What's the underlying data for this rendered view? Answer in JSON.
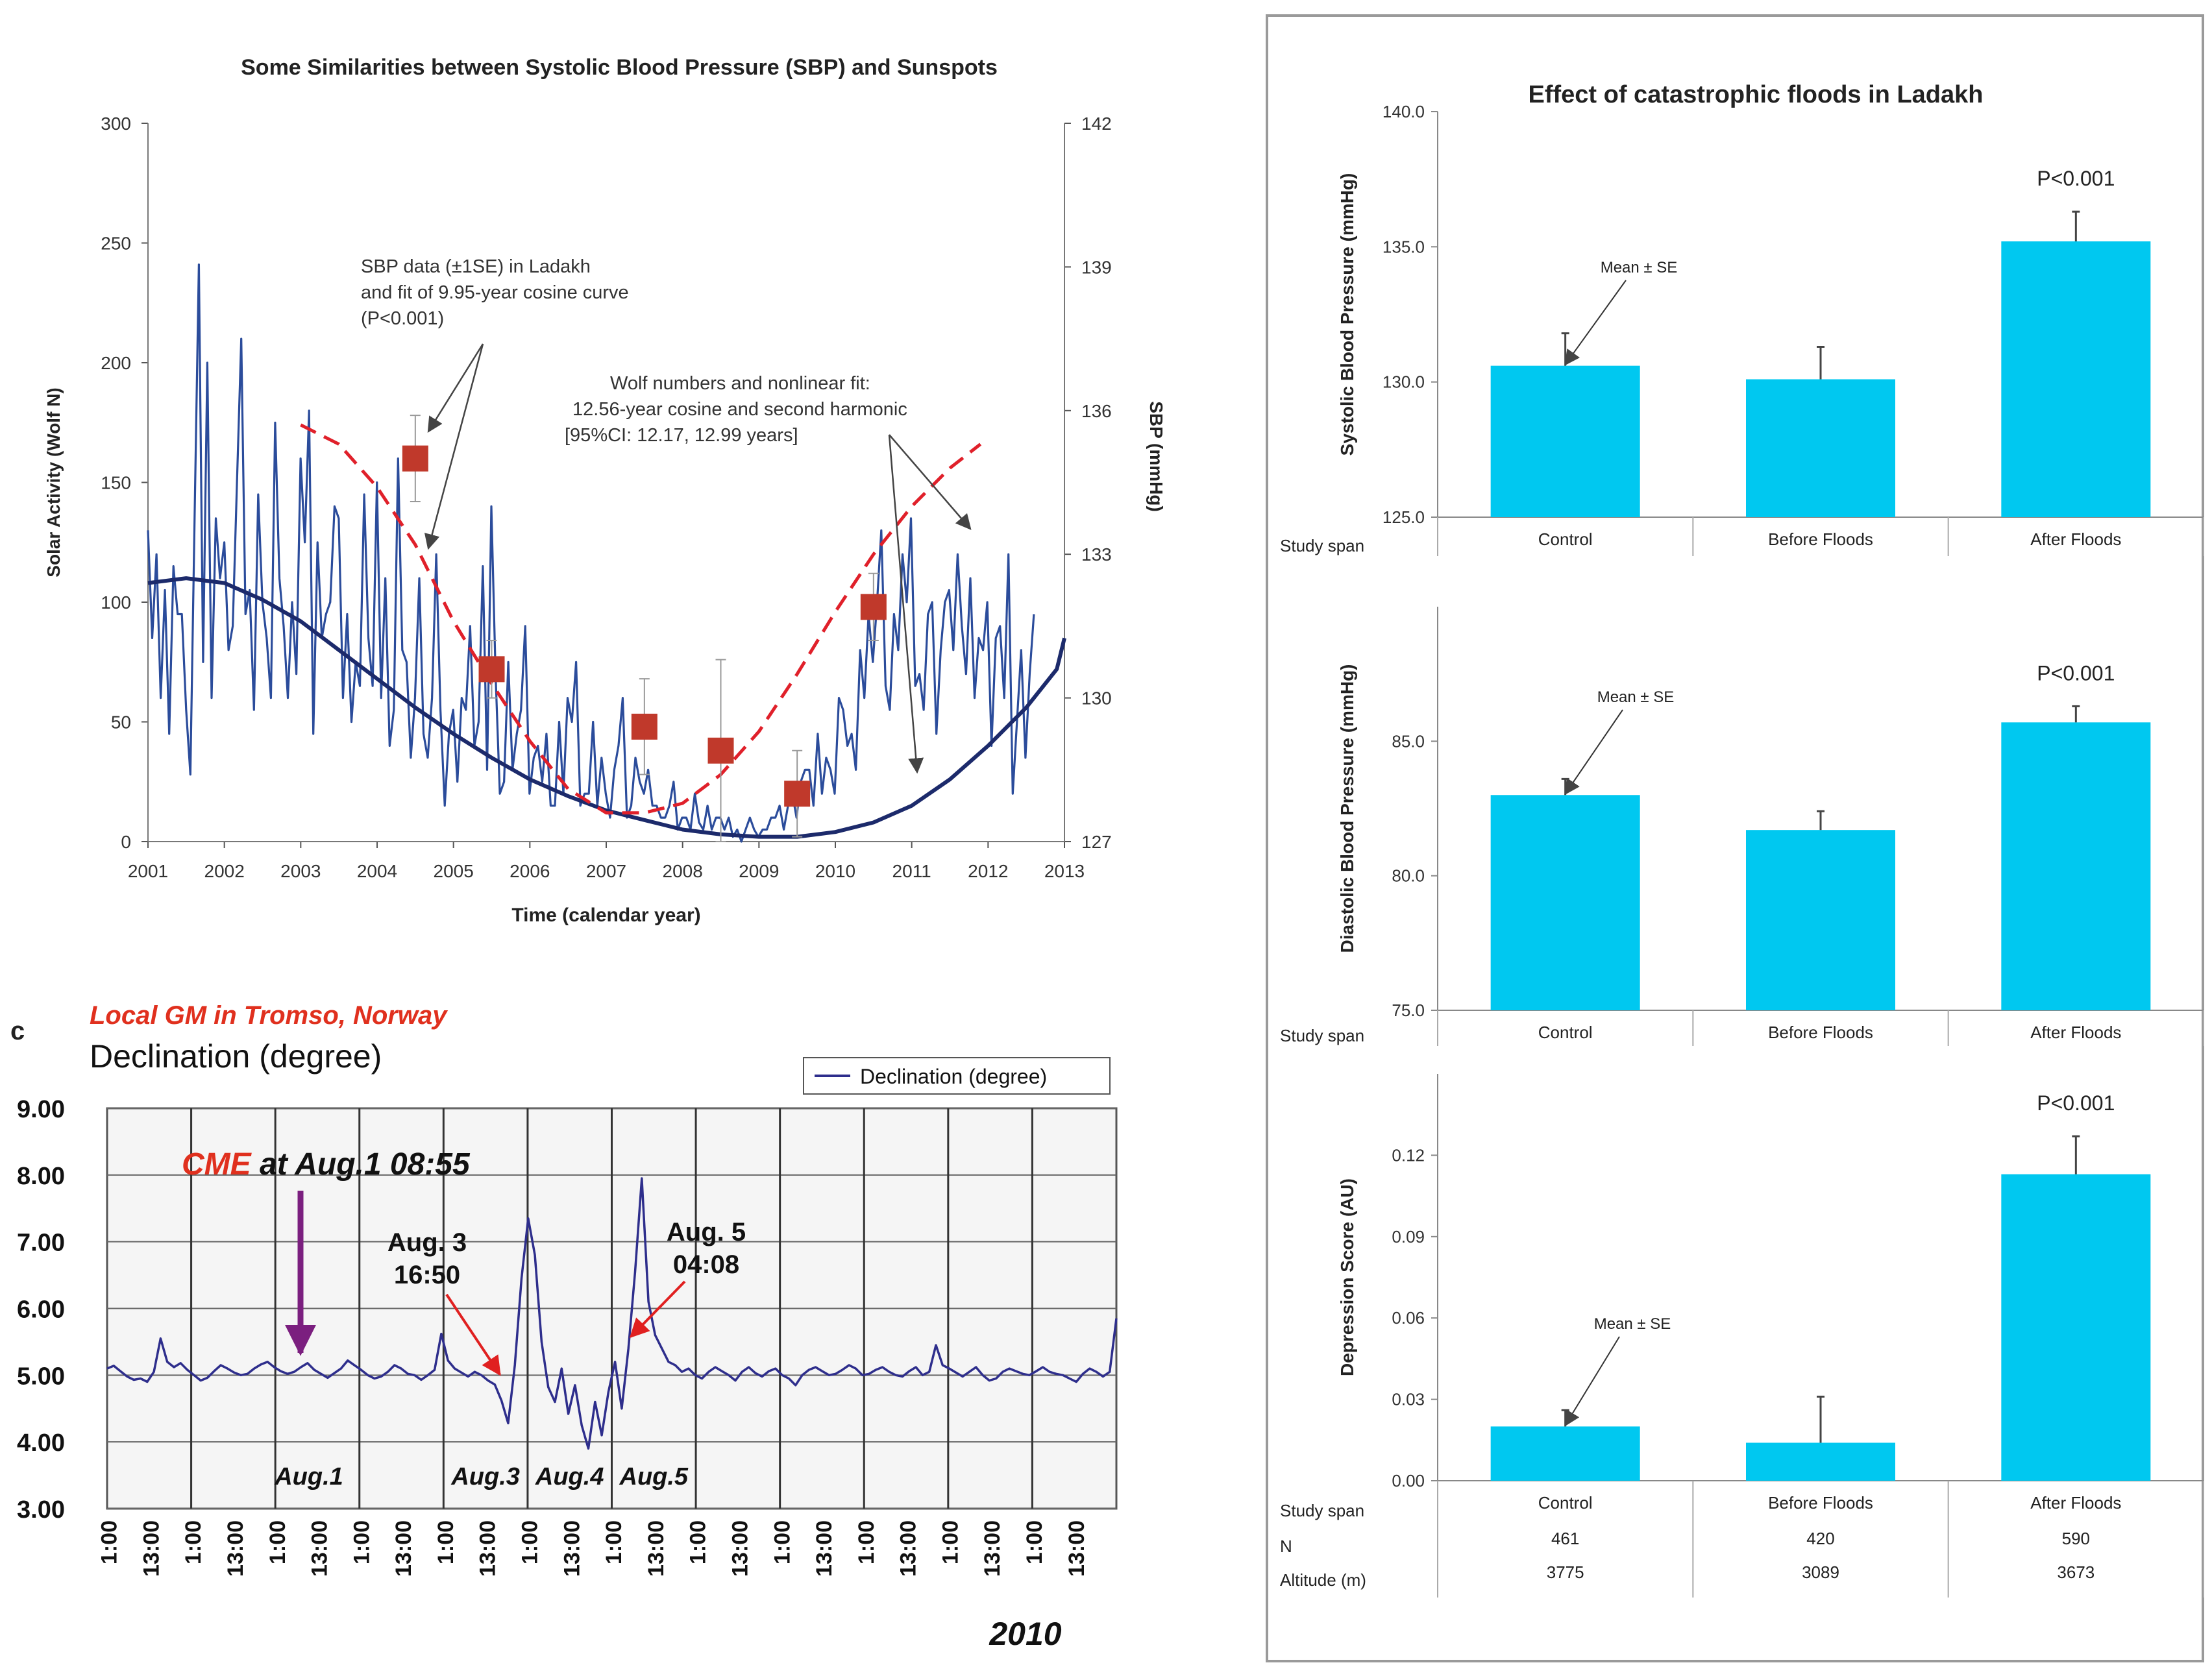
{
  "chart_data": [
    {
      "id": "sunspots_sbp",
      "type": "line",
      "title": "Some Similarities between Systolic Blood Pressure (SBP) and Sunspots",
      "xlabel": "Time (calendar year)",
      "ylabel": "Solar Activity (Wolf N)",
      "y2label": "SBP (mmHg)",
      "x_ticks": [
        "2001",
        "2002",
        "2003",
        "2004",
        "2005",
        "2006",
        "2007",
        "2008",
        "2009",
        "2010",
        "2011",
        "2012",
        "2013"
      ],
      "xlim": [
        2001,
        2013
      ],
      "y_ticks": [
        "0",
        "50",
        "100",
        "150",
        "200",
        "250",
        "300"
      ],
      "ylim": [
        0,
        300
      ],
      "y2_ticks": [
        "127",
        "130",
        "133",
        "136",
        "139",
        "142"
      ],
      "y2lim": [
        127,
        142
      ],
      "annotations": [
        {
          "lines": [
            "SBP data (±1SE) in Ladakh",
            "and fit of 9.95-year cosine curve",
            "(P<0.001)"
          ]
        },
        {
          "lines": [
            "Wolf numbers and nonlinear fit:",
            "12.56-year cosine and second harmonic",
            "[95%CI: 12.17, 12.99 years]"
          ]
        }
      ],
      "wolf_monthly": [
        130,
        85,
        120,
        60,
        105,
        45,
        115,
        95,
        95,
        55,
        28,
        135,
        241,
        75,
        200,
        60,
        135,
        110,
        125,
        80,
        90,
        150,
        210,
        95,
        105,
        55,
        145,
        100,
        85,
        60,
        175,
        110,
        90,
        60,
        100,
        70,
        160,
        125,
        180,
        45,
        125,
        85,
        95,
        100,
        140,
        135,
        60,
        95,
        50,
        75,
        65,
        145,
        85,
        65,
        150,
        60,
        110,
        40,
        55,
        160,
        80,
        75,
        35,
        60,
        110,
        45,
        35,
        60,
        120,
        55,
        15,
        45,
        55,
        25,
        60,
        55,
        90,
        40,
        50,
        115,
        30,
        140,
        70,
        20,
        25,
        75,
        30,
        45,
        55,
        90,
        20,
        35,
        40,
        25,
        45,
        15,
        15,
        50,
        20,
        60,
        50,
        75,
        15,
        20,
        20,
        50,
        15,
        35,
        20,
        10,
        30,
        40,
        60,
        10,
        15,
        35,
        25,
        20,
        30,
        15,
        15,
        10,
        10,
        15,
        25,
        5,
        10,
        10,
        5,
        20,
        8,
        5,
        15,
        5,
        10,
        10,
        5,
        10,
        2,
        5,
        0,
        5,
        10,
        5,
        2,
        5,
        5,
        10,
        10,
        15,
        5,
        15,
        20,
        10,
        25,
        30,
        30,
        15,
        45,
        20,
        35,
        30,
        20,
        60,
        55,
        40,
        45,
        30,
        80,
        60,
        95,
        75,
        100,
        130,
        65,
        55,
        95,
        80,
        120,
        100,
        135,
        65,
        70,
        55,
        95,
        100,
        45,
        80,
        100,
        105,
        80,
        120,
        90,
        70,
        110,
        60,
        85,
        80,
        100,
        40,
        85,
        90,
        60,
        120,
        20,
        50,
        80,
        35,
        70,
        95
      ],
      "wolf_fit": [
        [
          2001.0,
          108
        ],
        [
          2001.5,
          110
        ],
        [
          2002.0,
          108
        ],
        [
          2002.5,
          101
        ],
        [
          2003.0,
          92
        ],
        [
          2003.5,
          80
        ],
        [
          2004.0,
          68
        ],
        [
          2004.5,
          56
        ],
        [
          2005.0,
          45
        ],
        [
          2005.5,
          35
        ],
        [
          2006.0,
          26
        ],
        [
          2006.5,
          19
        ],
        [
          2007.0,
          13
        ],
        [
          2007.5,
          9
        ],
        [
          2008.0,
          5
        ],
        [
          2008.5,
          3
        ],
        [
          2009.0,
          2
        ],
        [
          2009.5,
          2
        ],
        [
          2010.0,
          4
        ],
        [
          2010.5,
          8
        ],
        [
          2011.0,
          15
        ],
        [
          2011.5,
          26
        ],
        [
          2012.0,
          40
        ],
        [
          2012.5,
          56
        ],
        [
          2012.9,
          72
        ],
        [
          2013.0,
          85
        ]
      ],
      "sbp_fit": [
        [
          2003.0,
          135.7
        ],
        [
          2003.5,
          135.3
        ],
        [
          2004.0,
          134.4
        ],
        [
          2004.5,
          133.2
        ],
        [
          2005.0,
          131.6
        ],
        [
          2005.5,
          130.3
        ],
        [
          2006.0,
          129.1
        ],
        [
          2006.5,
          128.1
        ],
        [
          2007.0,
          127.6
        ],
        [
          2007.5,
          127.6
        ],
        [
          2008.0,
          127.8
        ],
        [
          2008.5,
          128.4
        ],
        [
          2009.0,
          129.3
        ],
        [
          2009.5,
          130.5
        ],
        [
          2010.0,
          131.8
        ],
        [
          2010.5,
          133.0
        ],
        [
          2011.0,
          134.0
        ],
        [
          2011.5,
          134.8
        ],
        [
          2011.9,
          135.3
        ]
      ],
      "sbp_points": [
        {
          "x": 2004.5,
          "y": 135.0,
          "se": 0.9
        },
        {
          "x": 2005.5,
          "y": 130.6,
          "se": 0.6
        },
        {
          "x": 2007.5,
          "y": 129.4,
          "se": 1.0
        },
        {
          "x": 2008.5,
          "y": 128.9,
          "se": 1.9
        },
        {
          "x": 2009.5,
          "y": 128.0,
          "se": 0.9
        },
        {
          "x": 2010.5,
          "y": 131.9,
          "se": 0.7
        }
      ],
      "colors": {
        "wolf": "#2b4c9b",
        "wolf_fit": "#1c2a6b",
        "sbp_fit": "#e0202a",
        "sbp_points": "#c0392b"
      }
    },
    {
      "id": "tromso_declination",
      "type": "line",
      "panel_label": "c",
      "title": "Local GM in Tromso, Norway",
      "subtitle": "Declination (degree)",
      "legend": "Declination (degree)",
      "y_ticks": [
        "3.00",
        "4.00",
        "5.00",
        "6.00",
        "7.00",
        "8.00",
        "9.00"
      ],
      "ylim": [
        3,
        9
      ],
      "x_ticks": [
        "1:00",
        "13:00",
        "1:00",
        "13:00",
        "1:00",
        "13:00",
        "1:00",
        "13:00",
        "1:00",
        "13:00",
        "1:00",
        "13:00",
        "1:00",
        "13:00",
        "1:00",
        "13:00",
        "1:00",
        "13:00",
        "1:00",
        "13:00",
        "1:00",
        "13:00",
        "1:00",
        "13:00"
      ],
      "year": "2010",
      "day_labels": [
        {
          "text": "Aug.1",
          "x": 2.4
        },
        {
          "text": "Aug.3",
          "x": 4.5
        },
        {
          "text": "Aug.4",
          "x": 5.5
        },
        {
          "text": "Aug.5",
          "x": 6.5
        }
      ],
      "event_cme": {
        "prefix": "CME",
        "text": "at Aug.1 08:55",
        "x": 2.3
      },
      "event_aug3": {
        "lines": [
          "Aug. 3",
          "16:50"
        ],
        "x": 4.7
      },
      "event_aug5": {
        "lines": [
          "Aug. 5",
          "04:08"
        ],
        "x": 6.2
      },
      "declination": [
        5.1,
        5.14,
        5.06,
        4.98,
        4.93,
        4.95,
        4.9,
        5.05,
        5.55,
        5.2,
        5.12,
        5.18,
        5.08,
        5.0,
        4.92,
        4.96,
        5.06,
        5.15,
        5.1,
        5.04,
        5.0,
        5.02,
        5.1,
        5.16,
        5.2,
        5.12,
        5.06,
        5.02,
        5.05,
        5.12,
        5.18,
        5.08,
        5.02,
        4.96,
        5.03,
        5.1,
        5.22,
        5.15,
        5.08,
        5.0,
        4.95,
        4.98,
        5.05,
        5.15,
        5.1,
        5.02,
        5.0,
        4.93,
        5.0,
        5.08,
        5.62,
        5.22,
        5.1,
        5.04,
        4.98,
        5.05,
        5.0,
        4.92,
        4.86,
        4.62,
        4.28,
        5.15,
        6.45,
        7.35,
        6.8,
        5.5,
        4.82,
        4.6,
        5.1,
        4.42,
        4.85,
        4.25,
        3.9,
        4.6,
        4.1,
        4.75,
        5.2,
        4.5,
        5.4,
        6.55,
        7.95,
        6.1,
        5.6,
        5.4,
        5.2,
        5.15,
        5.05,
        5.1,
        5.0,
        4.95,
        5.05,
        5.12,
        5.06,
        5.0,
        4.92,
        5.05,
        5.12,
        5.03,
        4.98,
        5.06,
        5.1,
        5.0,
        4.95,
        4.85,
        5.0,
        5.08,
        5.12,
        5.06,
        5.0,
        5.02,
        5.08,
        5.15,
        5.1,
        5.0,
        5.02,
        5.08,
        5.12,
        5.05,
        5.0,
        4.98,
        5.06,
        5.12,
        5.0,
        5.05,
        5.45,
        5.15,
        5.1,
        5.04,
        4.98,
        5.05,
        5.12,
        5.0,
        4.92,
        4.95,
        5.05,
        5.1,
        5.06,
        5.02,
        5.0,
        5.06,
        5.12,
        5.05,
        5.02,
        5.0,
        4.95,
        4.9,
        5.02,
        5.1,
        5.05,
        4.98,
        5.05,
        5.85
      ],
      "colors": {
        "line": "#2e2e8c",
        "title": "#e0301e",
        "cme": "#e0301e",
        "arrow_cme": "#7b1f7f",
        "arrow_red": "#e02020",
        "plot_bg": "#f5f5f5"
      }
    },
    {
      "id": "ladakh_sbp",
      "type": "bar",
      "title": "Effect of catastrophic floods in Ladakh",
      "ylabel": "Systolic Blood Pressure (mmHg)",
      "categories": [
        "Control",
        "Before Floods",
        "After Floods"
      ],
      "values": [
        130.6,
        130.1,
        135.2
      ],
      "errors": [
        1.2,
        1.2,
        1.1
      ],
      "ylim": [
        125,
        140
      ],
      "y_ticks": [
        "125.0",
        "130.0",
        "135.0",
        "140.0"
      ],
      "row_label": "Study span",
      "mean_label": "Mean ± SE",
      "p_label": "P<0.001",
      "bar_color": "#00c8f0"
    },
    {
      "id": "ladakh_dbp",
      "type": "bar",
      "ylabel": "Diastolic Blood Pressure (mmHg)",
      "categories": [
        "Control",
        "Before Floods",
        "After Floods"
      ],
      "values": [
        83.0,
        81.7,
        85.7
      ],
      "errors": [
        0.6,
        0.7,
        0.6
      ],
      "ylim": [
        75,
        90
      ],
      "y_ticks": [
        "75.0",
        "80.0",
        "85.0"
      ],
      "row_label": "Study span",
      "mean_label": "Mean ± SE",
      "p_label": "P<0.001",
      "bar_color": "#00c8f0"
    },
    {
      "id": "ladakh_depression",
      "type": "bar",
      "ylabel": "Depression Score (AU)",
      "categories": [
        "Control",
        "Before Floods",
        "After Floods"
      ],
      "values": [
        0.02,
        0.014,
        0.113
      ],
      "errors": [
        0.006,
        0.017,
        0.014
      ],
      "ylim": [
        0,
        0.15
      ],
      "y_ticks": [
        "0.00",
        "0.03",
        "0.06",
        "0.09",
        "0.12"
      ],
      "table_rows": [
        {
          "label": "Study span",
          "cells": [
            "Control",
            "Before Floods",
            "After Floods"
          ]
        },
        {
          "label": "N",
          "cells": [
            "461",
            "420",
            "590"
          ]
        },
        {
          "label": "Altitude (m)",
          "cells": [
            "3775",
            "3089",
            "3673"
          ]
        }
      ],
      "mean_label": "Mean ± SE",
      "p_label": "P<0.001",
      "bar_color": "#00c8f0"
    }
  ]
}
